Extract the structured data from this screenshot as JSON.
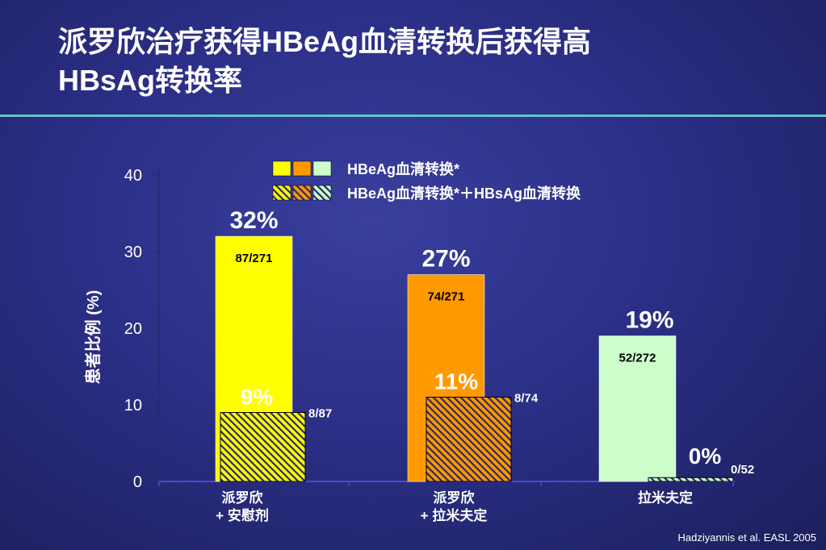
{
  "slide": {
    "title_line1": "派罗欣治疗获得HBeAg血清转换后获得高",
    "title_line2": "HBsAg转换率",
    "source": "Hadziyannis et al. EASL 2005"
  },
  "colors": {
    "accent_rule": "#5fc6c8",
    "yellow": "#ffff00",
    "orange": "#ff9900",
    "mint": "#ccffcc",
    "hatch_line": "#2a2a6a"
  },
  "chart_data": {
    "type": "bar",
    "ylabel": "患者比例 (%)",
    "ylim": [
      0,
      40
    ],
    "yticks": [
      0,
      10,
      20,
      30,
      40
    ],
    "categories": [
      [
        "派罗欣",
        "+ 安慰剂"
      ],
      [
        "派罗欣",
        "+ 拉米夫定"
      ],
      [
        "拉米夫定"
      ]
    ],
    "series": [
      {
        "name": "HBeAg血清转换*",
        "values": [
          32,
          27,
          19
        ],
        "value_labels": [
          "32%",
          "27%",
          "19%"
        ],
        "count_labels": [
          "87/271",
          "74/271",
          "52/272"
        ],
        "colors": [
          "#ffff00",
          "#ff9900",
          "#ccffcc"
        ]
      },
      {
        "name": "HBeAg血清转换*＋HBsAg血清转换",
        "values": [
          9,
          11,
          0.5
        ],
        "value_labels": [
          "9%",
          "11%",
          "0%"
        ],
        "count_labels": [
          "8/87",
          "8/74",
          "0/52"
        ],
        "colors": [
          "#ffff00",
          "#ff9900",
          "#ccffcc"
        ],
        "hatched": true
      }
    ],
    "legend_position": "top",
    "grid": false
  }
}
